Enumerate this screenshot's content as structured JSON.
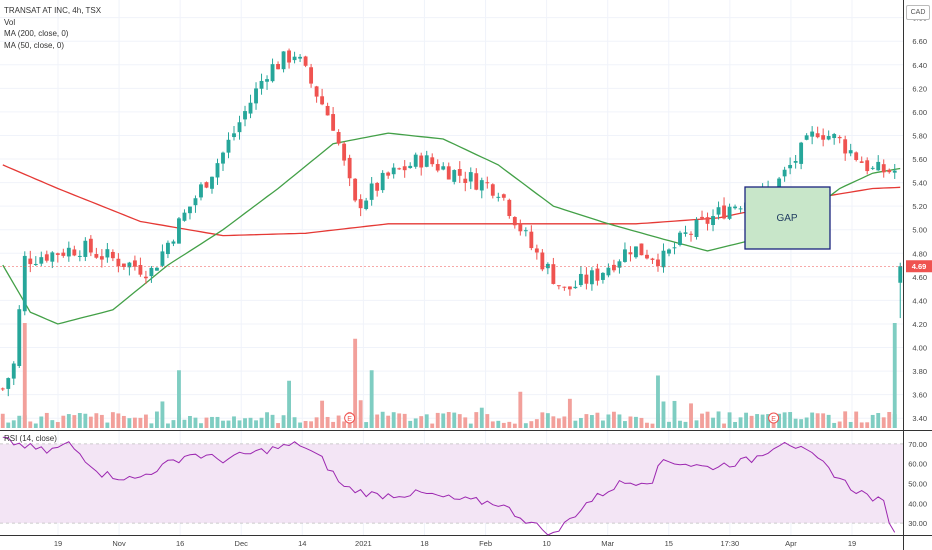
{
  "header": {
    "symbol_line": "TRANSAT AT INC, 4h, TSX",
    "indicators": [
      "Vol",
      "MA (200, close, 0)",
      "MA (50, close, 0)"
    ],
    "currency": "CAD",
    "rsi_label": "RSI (14, close)"
  },
  "annotations": {
    "gap_label": "GAP",
    "earnings_marker": "E"
  },
  "colors": {
    "up": "#26a69a",
    "down": "#ef5350",
    "vol_up": "#7fcdc2",
    "vol_down": "#f2a09b",
    "ma200": "#e53935",
    "ma50": "#43a047",
    "rsi_line": "#9c27b0",
    "rsi_band": "#f3e5f5",
    "gap_fill": "#c8e6c9",
    "gap_border": "#1a237e",
    "price_tag": "#ef5350"
  },
  "chart_data": {
    "type": "candlestick",
    "title": "TRANSAT AT INC, 4h, TSX",
    "price_axis": {
      "min": 3.3,
      "max": 6.95,
      "ticks": [
        "6.80",
        "6.60",
        "6.40",
        "6.20",
        "6.00",
        "5.80",
        "5.60",
        "5.40",
        "5.20",
        "5.00",
        "4.80",
        "4.60",
        "4.40",
        "4.20",
        "4.00",
        "3.80",
        "3.60",
        "3.40"
      ]
    },
    "last_price": "4.69",
    "x_ticks": [
      "19",
      "Nov",
      "16",
      "Dec",
      "14",
      "2021",
      "18",
      "Feb",
      "10",
      "Mar",
      "15",
      "17:30",
      "Apr",
      "19"
    ],
    "price_path": [
      {
        "t": 0,
        "v": 3.65
      },
      {
        "t": 2,
        "v": 3.85
      },
      {
        "t": 4,
        "v": 4.75
      },
      {
        "t": 14,
        "v": 4.85
      },
      {
        "t": 20,
        "v": 4.75
      },
      {
        "t": 27,
        "v": 4.65
      },
      {
        "t": 32,
        "v": 5.05
      },
      {
        "t": 40,
        "v": 5.65
      },
      {
        "t": 48,
        "v": 6.35
      },
      {
        "t": 53,
        "v": 6.5
      },
      {
        "t": 60,
        "v": 5.9
      },
      {
        "t": 64,
        "v": 5.2
      },
      {
        "t": 70,
        "v": 5.45
      },
      {
        "t": 76,
        "v": 5.6
      },
      {
        "t": 84,
        "v": 5.45
      },
      {
        "t": 90,
        "v": 5.35
      },
      {
        "t": 96,
        "v": 4.85
      },
      {
        "t": 102,
        "v": 4.48
      },
      {
        "t": 108,
        "v": 4.62
      },
      {
        "t": 114,
        "v": 4.85
      },
      {
        "t": 120,
        "v": 4.75
      },
      {
        "t": 124,
        "v": 4.95
      },
      {
        "t": 132,
        "v": 5.2
      },
      {
        "t": 140,
        "v": 5.35
      },
      {
        "t": 148,
        "v": 5.85
      },
      {
        "t": 152,
        "v": 5.75
      },
      {
        "t": 158,
        "v": 5.5
      },
      {
        "t": 163,
        "v": 5.5
      }
    ],
    "gap_drop": {
      "open": 4.55,
      "close": 4.69,
      "low": 4.25,
      "high": 4.72
    },
    "ma200": [
      {
        "t": 0,
        "v": 5.55
      },
      {
        "t": 10,
        "v": 5.35
      },
      {
        "t": 25,
        "v": 5.07
      },
      {
        "t": 40,
        "v": 4.95
      },
      {
        "t": 55,
        "v": 4.97
      },
      {
        "t": 70,
        "v": 5.05
      },
      {
        "t": 90,
        "v": 5.05
      },
      {
        "t": 115,
        "v": 5.05
      },
      {
        "t": 130,
        "v": 5.1
      },
      {
        "t": 145,
        "v": 5.25
      },
      {
        "t": 158,
        "v": 5.35
      },
      {
        "t": 163,
        "v": 5.36
      }
    ],
    "ma50": [
      {
        "t": 0,
        "v": 4.7
      },
      {
        "t": 5,
        "v": 4.3
      },
      {
        "t": 10,
        "v": 4.2
      },
      {
        "t": 20,
        "v": 4.32
      },
      {
        "t": 30,
        "v": 4.7
      },
      {
        "t": 40,
        "v": 5.0
      },
      {
        "t": 50,
        "v": 5.35
      },
      {
        "t": 60,
        "v": 5.73
      },
      {
        "t": 70,
        "v": 5.82
      },
      {
        "t": 80,
        "v": 5.77
      },
      {
        "t": 90,
        "v": 5.55
      },
      {
        "t": 100,
        "v": 5.2
      },
      {
        "t": 110,
        "v": 5.05
      },
      {
        "t": 120,
        "v": 4.92
      },
      {
        "t": 128,
        "v": 4.82
      },
      {
        "t": 135,
        "v": 4.9
      },
      {
        "t": 145,
        "v": 5.1
      },
      {
        "t": 152,
        "v": 5.35
      },
      {
        "t": 158,
        "v": 5.48
      },
      {
        "t": 163,
        "v": 5.52
      }
    ],
    "volume_spikes": [
      {
        "t": 4,
        "v": 1.0,
        "up": false
      },
      {
        "t": 32,
        "v": 0.55,
        "up": true
      },
      {
        "t": 52,
        "v": 0.45,
        "up": true
      },
      {
        "t": 64,
        "v": 0.85,
        "up": false
      },
      {
        "t": 67,
        "v": 0.55,
        "up": true
      },
      {
        "t": 119,
        "v": 0.5,
        "up": true
      },
      {
        "t": 162,
        "v": 1.0,
        "up": true
      }
    ],
    "earnings_at": [
      63,
      140
    ],
    "rsi_axis": {
      "min": 24,
      "max": 76,
      "ticks": [
        "70.00",
        "60.00",
        "50.00",
        "40.00",
        "30.00"
      ]
    },
    "rsi": [
      {
        "t": 0,
        "v": 72
      },
      {
        "t": 8,
        "v": 66
      },
      {
        "t": 12,
        "v": 70
      },
      {
        "t": 18,
        "v": 55
      },
      {
        "t": 24,
        "v": 52
      },
      {
        "t": 30,
        "v": 60
      },
      {
        "t": 34,
        "v": 65
      },
      {
        "t": 40,
        "v": 62
      },
      {
        "t": 48,
        "v": 67
      },
      {
        "t": 54,
        "v": 70
      },
      {
        "t": 58,
        "v": 62
      },
      {
        "t": 62,
        "v": 48
      },
      {
        "t": 68,
        "v": 44
      },
      {
        "t": 76,
        "v": 45
      },
      {
        "t": 82,
        "v": 42
      },
      {
        "t": 90,
        "v": 40
      },
      {
        "t": 96,
        "v": 30
      },
      {
        "t": 100,
        "v": 24
      },
      {
        "t": 106,
        "v": 40
      },
      {
        "t": 112,
        "v": 50
      },
      {
        "t": 118,
        "v": 52
      },
      {
        "t": 120,
        "v": 62
      },
      {
        "t": 128,
        "v": 58
      },
      {
        "t": 136,
        "v": 62
      },
      {
        "t": 142,
        "v": 72
      },
      {
        "t": 148,
        "v": 62
      },
      {
        "t": 154,
        "v": 48
      },
      {
        "t": 160,
        "v": 40
      },
      {
        "t": 162,
        "v": 24
      }
    ]
  }
}
